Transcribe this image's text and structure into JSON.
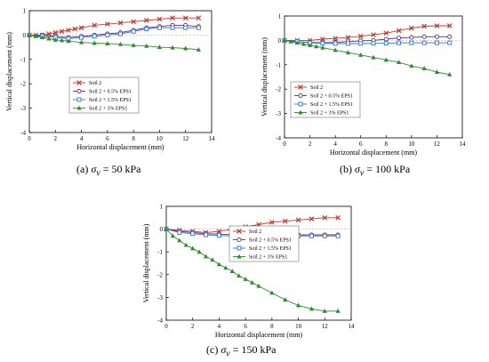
{
  "chart_data": [
    {
      "type": "line",
      "caption_prefix": "(a) ",
      "caption_symbol": "σ",
      "caption_sub": "v",
      "caption_suffix": " = 50 kPa",
      "xlabel": "Horizontal displacement (mm)",
      "ylabel": "Vertical displacement (mm)",
      "xlim": [
        0,
        14
      ],
      "ylim": [
        -4,
        1
      ],
      "xticks": [
        "0",
        "2",
        "4",
        "6",
        "8",
        "10",
        "12",
        "14"
      ],
      "yticks": [
        "1",
        "0",
        "-1",
        "-2",
        "-3",
        "-4"
      ],
      "legend_position": "center",
      "series": [
        {
          "name": "Soil 2",
          "color": "#c0392b",
          "marker": "x",
          "x": [
            0,
            0.5,
            1,
            1.5,
            2,
            2.5,
            3,
            3.5,
            4,
            5,
            6,
            7,
            8,
            9,
            10,
            11,
            12,
            13
          ],
          "y": [
            0,
            0,
            0,
            0.05,
            0.1,
            0.15,
            0.2,
            0.25,
            0.3,
            0.4,
            0.45,
            0.5,
            0.55,
            0.6,
            0.65,
            0.7,
            0.7,
            0.7
          ]
        },
        {
          "name": "Soil 2 + 0.5% EPS1",
          "color": "#5b2c83",
          "marker": "circle",
          "x": [
            0,
            1,
            2,
            3,
            4,
            5,
            6,
            7,
            8,
            9,
            10,
            11,
            12,
            13
          ],
          "y": [
            0,
            0,
            -0.05,
            -0.1,
            -0.05,
            0,
            0.05,
            0.1,
            0.2,
            0.3,
            0.35,
            0.4,
            0.4,
            0.35
          ]
        },
        {
          "name": "Soil 2 + 1.5% EPS1",
          "color": "#2e75d6",
          "marker": "square",
          "x": [
            0,
            1,
            2,
            3,
            4,
            5,
            6,
            7,
            8,
            9,
            10,
            11,
            12,
            13
          ],
          "y": [
            0,
            -0.05,
            -0.1,
            -0.15,
            -0.1,
            -0.05,
            0,
            0.05,
            0.15,
            0.25,
            0.3,
            0.3,
            0.3,
            0.3
          ]
        },
        {
          "name": "Soil 2 + 3% EPS1",
          "color": "#2e8b2e",
          "marker": "triangle",
          "x": [
            0,
            0.5,
            1,
            1.5,
            2,
            2.5,
            3,
            4,
            5,
            6,
            7,
            8,
            9,
            10,
            11,
            12,
            13
          ],
          "y": [
            0,
            -0.05,
            -0.1,
            -0.15,
            -0.2,
            -0.22,
            -0.25,
            -0.3,
            -0.33,
            -0.35,
            -0.38,
            -0.42,
            -0.45,
            -0.5,
            -0.52,
            -0.55,
            -0.6
          ]
        }
      ]
    },
    {
      "type": "line",
      "caption_prefix": "(b) ",
      "caption_symbol": "σ",
      "caption_sub": "v",
      "caption_suffix": " = 100 kPa",
      "xlabel": "Horizontal displacement (mm)",
      "ylabel": "Vertical displacement (mm)",
      "xlim": [
        0,
        14
      ],
      "ylim": [
        -4,
        1
      ],
      "xticks": [
        "0",
        "2",
        "4",
        "6",
        "8",
        "10",
        "12",
        "14"
      ],
      "yticks": [
        "1",
        "0",
        "-1",
        "-2",
        "-3",
        "-4"
      ],
      "legend_position": "lower-left",
      "series": [
        {
          "name": "Soil 2",
          "color": "#c0392b",
          "marker": "x",
          "x": [
            0,
            1,
            2,
            3,
            4,
            5,
            6,
            7,
            8,
            9,
            10,
            11,
            12,
            13
          ],
          "y": [
            0,
            0,
            0,
            0.05,
            0.08,
            0.12,
            0.17,
            0.23,
            0.3,
            0.4,
            0.5,
            0.58,
            0.6,
            0.6
          ]
        },
        {
          "name": "Soil 2 + 0.5% EPS1",
          "color": "#5b2c83",
          "marker": "circle",
          "x": [
            0,
            1,
            2,
            3,
            4,
            5,
            6,
            7,
            8,
            9,
            10,
            11,
            12,
            13
          ],
          "y": [
            0,
            -0.05,
            -0.08,
            -0.1,
            -0.08,
            -0.05,
            -0.02,
            0,
            0.05,
            0.1,
            0.12,
            0.15,
            0.15,
            0.15
          ]
        },
        {
          "name": "Soil 2 + 1.5% EPS1",
          "color": "#2e75d6",
          "marker": "square",
          "x": [
            0,
            1,
            2,
            3,
            4,
            5,
            6,
            7,
            8,
            9,
            10,
            11,
            12,
            13
          ],
          "y": [
            0,
            -0.05,
            -0.1,
            -0.12,
            -0.13,
            -0.13,
            -0.13,
            -0.12,
            -0.12,
            -0.1,
            -0.1,
            -0.1,
            -0.1,
            -0.1
          ]
        },
        {
          "name": "Soil 2 + 3% EPS1",
          "color": "#2e8b2e",
          "marker": "triangle",
          "x": [
            0,
            0.5,
            1,
            1.5,
            2,
            2.5,
            3,
            4,
            5,
            6,
            7,
            8,
            9,
            10,
            11,
            12,
            13
          ],
          "y": [
            0,
            -0.05,
            -0.1,
            -0.15,
            -0.2,
            -0.25,
            -0.3,
            -0.4,
            -0.5,
            -0.6,
            -0.7,
            -0.8,
            -0.9,
            -1.05,
            -1.15,
            -1.3,
            -1.4
          ]
        }
      ]
    },
    {
      "type": "line",
      "caption_prefix": "(c) ",
      "caption_symbol": "σ",
      "caption_sub": "v",
      "caption_suffix": " = 150 kPa",
      "xlabel": "Horizontal displacement (mm)",
      "ylabel": "Vertical displacement (mm)",
      "xlim": [
        0,
        14
      ],
      "ylim": [
        -4,
        1
      ],
      "xticks": [
        "0",
        "2",
        "4",
        "6",
        "8",
        "10",
        "12",
        "14"
      ],
      "yticks": [
        "1",
        "0",
        "-1",
        "-2",
        "-3",
        "-4"
      ],
      "legend_position": "upper-right",
      "series": [
        {
          "name": "Soil 2",
          "color": "#c0392b",
          "marker": "x",
          "x": [
            0,
            1,
            2,
            3,
            4,
            5,
            6,
            7,
            8,
            9,
            10,
            11,
            12,
            13
          ],
          "y": [
            0,
            -0.05,
            -0.1,
            -0.15,
            -0.1,
            0,
            0.1,
            0.2,
            0.3,
            0.35,
            0.4,
            0.45,
            0.5,
            0.5
          ]
        },
        {
          "name": "Soil 2 + 0.5% EPS1",
          "color": "#5b2c83",
          "marker": "circle",
          "x": [
            0,
            1,
            2,
            3,
            4,
            5,
            6,
            7,
            8,
            9,
            10,
            11,
            12,
            13
          ],
          "y": [
            0,
            -0.1,
            -0.15,
            -0.2,
            -0.22,
            -0.25,
            -0.25,
            -0.25,
            -0.25,
            -0.25,
            -0.25,
            -0.25,
            -0.25,
            -0.25
          ]
        },
        {
          "name": "Soil 2 + 1.5% EPS1",
          "color": "#2e75d6",
          "marker": "square",
          "x": [
            0,
            1,
            2,
            3,
            4,
            5,
            6,
            7,
            8,
            9,
            10,
            11,
            12,
            13
          ],
          "y": [
            0,
            -0.15,
            -0.2,
            -0.25,
            -0.28,
            -0.3,
            -0.3,
            -0.3,
            -0.3,
            -0.3,
            -0.3,
            -0.3,
            -0.3,
            -0.3
          ]
        },
        {
          "name": "Soil 2 + 3% EPS1",
          "color": "#2e8b2e",
          "marker": "triangle",
          "x": [
            0,
            0.5,
            1,
            1.5,
            2,
            2.5,
            3,
            3.5,
            4,
            4.5,
            5,
            5.5,
            6,
            6.5,
            7,
            8,
            9,
            10,
            11,
            12,
            13
          ],
          "y": [
            0,
            -0.3,
            -0.5,
            -0.7,
            -0.85,
            -1.0,
            -1.2,
            -1.35,
            -1.55,
            -1.7,
            -1.85,
            -2.05,
            -2.2,
            -2.35,
            -2.5,
            -2.8,
            -3.1,
            -3.35,
            -3.5,
            -3.6,
            -3.6
          ]
        }
      ]
    }
  ]
}
